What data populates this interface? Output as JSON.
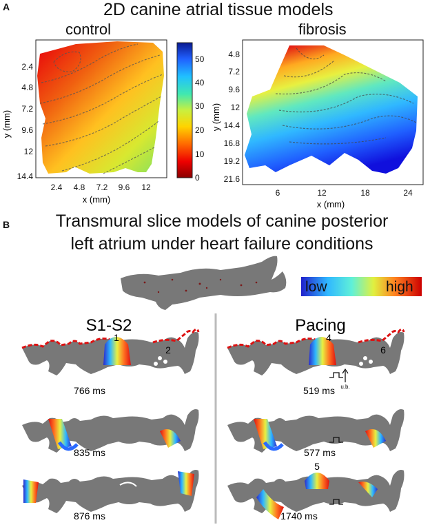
{
  "figure": {
    "panel_a": {
      "letter": "A",
      "title": "2D canine atrial tissue models",
      "control": {
        "label": "control",
        "xticks": [
          "2.4",
          "4.8",
          "7.2",
          "9.6",
          "12"
        ],
        "yticks": [
          "2.4",
          "4.8",
          "7.2",
          "9.6",
          "12",
          "14.4"
        ],
        "xlabel": "x (mm)",
        "ylabel": "y (mm)"
      },
      "fibrosis": {
        "label": "fibrosis",
        "xticks": [
          "6",
          "12",
          "18",
          "24"
        ],
        "yticks": [
          "4.8",
          "7.2",
          "9.6",
          "12",
          "14.4",
          "16.8",
          "19.2",
          "21.6"
        ],
        "xlabel": "x (mm)",
        "ylabel": "y (mm)"
      },
      "colorbar": {
        "ticks": [
          "50",
          "40",
          "30",
          "20",
          "10",
          "0"
        ]
      }
    },
    "panel_b": {
      "letter": "B",
      "title_line1": "Transmural slice models of canine posterior",
      "title_line2": "left atrium under heart failure conditions",
      "scale": {
        "low": "low",
        "high": "high"
      },
      "s1s2": {
        "label": "S1-S2",
        "times": [
          "766 ms",
          "835 ms",
          "876 ms"
        ],
        "markers": [
          "1",
          "2"
        ]
      },
      "pacing": {
        "label": "Pacing",
        "times": [
          "519 ms",
          "577 ms",
          "1740 ms"
        ],
        "markers": [
          "4",
          "6",
          "5"
        ],
        "ub": "u.b."
      }
    }
  },
  "colors": {
    "tissue_gray": "#777777",
    "activation_red": "#dd1111",
    "activation_blue": "#2233cc",
    "divider": "#bbbbbb"
  }
}
